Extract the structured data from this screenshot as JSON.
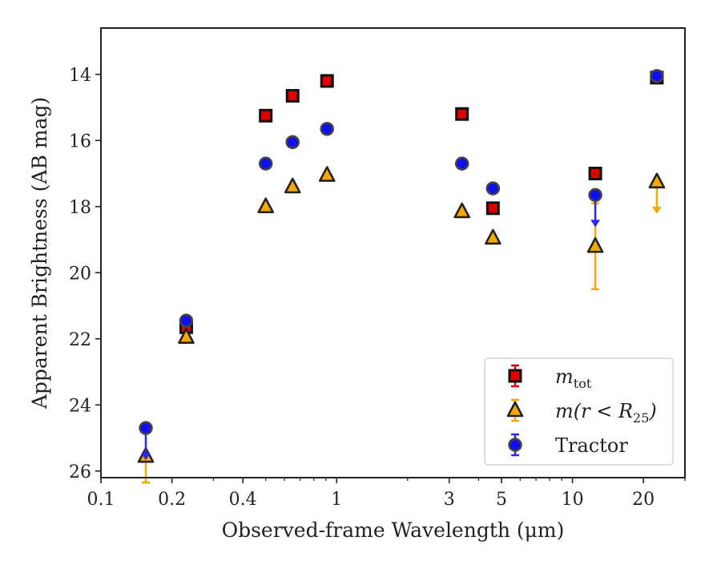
{
  "chart_data": {
    "type": "scatter",
    "xlabel": "Observed-frame Wavelength (μm)",
    "ylabel": "Apparent Brightness (AB mag)",
    "x_scale": "log",
    "xlim": [
      0.1,
      30
    ],
    "ylim": [
      26.2,
      12.6
    ],
    "y_inverted": true,
    "x_ticks": [
      {
        "value": 0.1,
        "label": "0.1"
      },
      {
        "value": 0.2,
        "label": "0.2"
      },
      {
        "value": 0.4,
        "label": "0.4"
      },
      {
        "value": 1,
        "label": "1"
      },
      {
        "value": 3,
        "label": "3"
      },
      {
        "value": 5,
        "label": "5"
      },
      {
        "value": 10,
        "label": "10"
      },
      {
        "value": 20,
        "label": "20"
      }
    ],
    "y_ticks": [
      {
        "value": 14,
        "label": "14"
      },
      {
        "value": 16,
        "label": "16"
      },
      {
        "value": 18,
        "label": "18"
      },
      {
        "value": 20,
        "label": "20"
      },
      {
        "value": 22,
        "label": "22"
      },
      {
        "value": 24,
        "label": "24"
      },
      {
        "value": 26,
        "label": "26"
      }
    ],
    "grid": false,
    "legend_position": "lower-right",
    "series": [
      {
        "name": "m_tot",
        "marker": "square",
        "color": "#e00000",
        "edge_color": "#111111",
        "points": [
          {
            "x": 0.23,
            "y": 21.65,
            "err": 0.15
          },
          {
            "x": 0.5,
            "y": 15.25
          },
          {
            "x": 0.65,
            "y": 14.65
          },
          {
            "x": 0.91,
            "y": 14.2
          },
          {
            "x": 3.4,
            "y": 15.2
          },
          {
            "x": 4.6,
            "y": 18.05
          },
          {
            "x": 12.5,
            "y": 17.0
          },
          {
            "x": 22.8,
            "y": 14.1
          }
        ]
      },
      {
        "name": "m(r<R25)",
        "marker": "triangle",
        "color": "#f5a800",
        "edge_color": "#222222",
        "points": [
          {
            "x": 0.155,
            "y": 25.55,
            "err_down": 0.8
          },
          {
            "x": 0.23,
            "y": 21.95
          },
          {
            "x": 0.5,
            "y": 18.0
          },
          {
            "x": 0.65,
            "y": 17.4
          },
          {
            "x": 0.91,
            "y": 17.05
          },
          {
            "x": 3.4,
            "y": 18.15
          },
          {
            "x": 4.6,
            "y": 18.95
          },
          {
            "x": 12.5,
            "y": 19.2,
            "err_up": 1.3,
            "err_down": 1.3
          },
          {
            "x": 22.8,
            "y": 17.25,
            "upper_limit": true
          }
        ]
      },
      {
        "name": "Tractor",
        "marker": "circle",
        "color": "#1010ee",
        "edge_color": "#444444",
        "points": [
          {
            "x": 0.155,
            "y": 24.7,
            "upper_limit": true
          },
          {
            "x": 0.23,
            "y": 21.45
          },
          {
            "x": 0.5,
            "y": 16.7
          },
          {
            "x": 0.65,
            "y": 16.05
          },
          {
            "x": 0.91,
            "y": 15.65
          },
          {
            "x": 3.4,
            "y": 16.7
          },
          {
            "x": 4.6,
            "y": 17.45
          },
          {
            "x": 12.5,
            "y": 17.65,
            "upper_limit": true
          },
          {
            "x": 22.8,
            "y": 14.05
          }
        ]
      }
    ],
    "legend": [
      {
        "series": "m_tot",
        "label": "m",
        "subscript": "tot"
      },
      {
        "series": "m(r<R25)",
        "label": "m(r < R",
        "subscript": "25",
        "suffix": ")"
      },
      {
        "series": "Tractor",
        "label": "Tractor"
      }
    ]
  }
}
